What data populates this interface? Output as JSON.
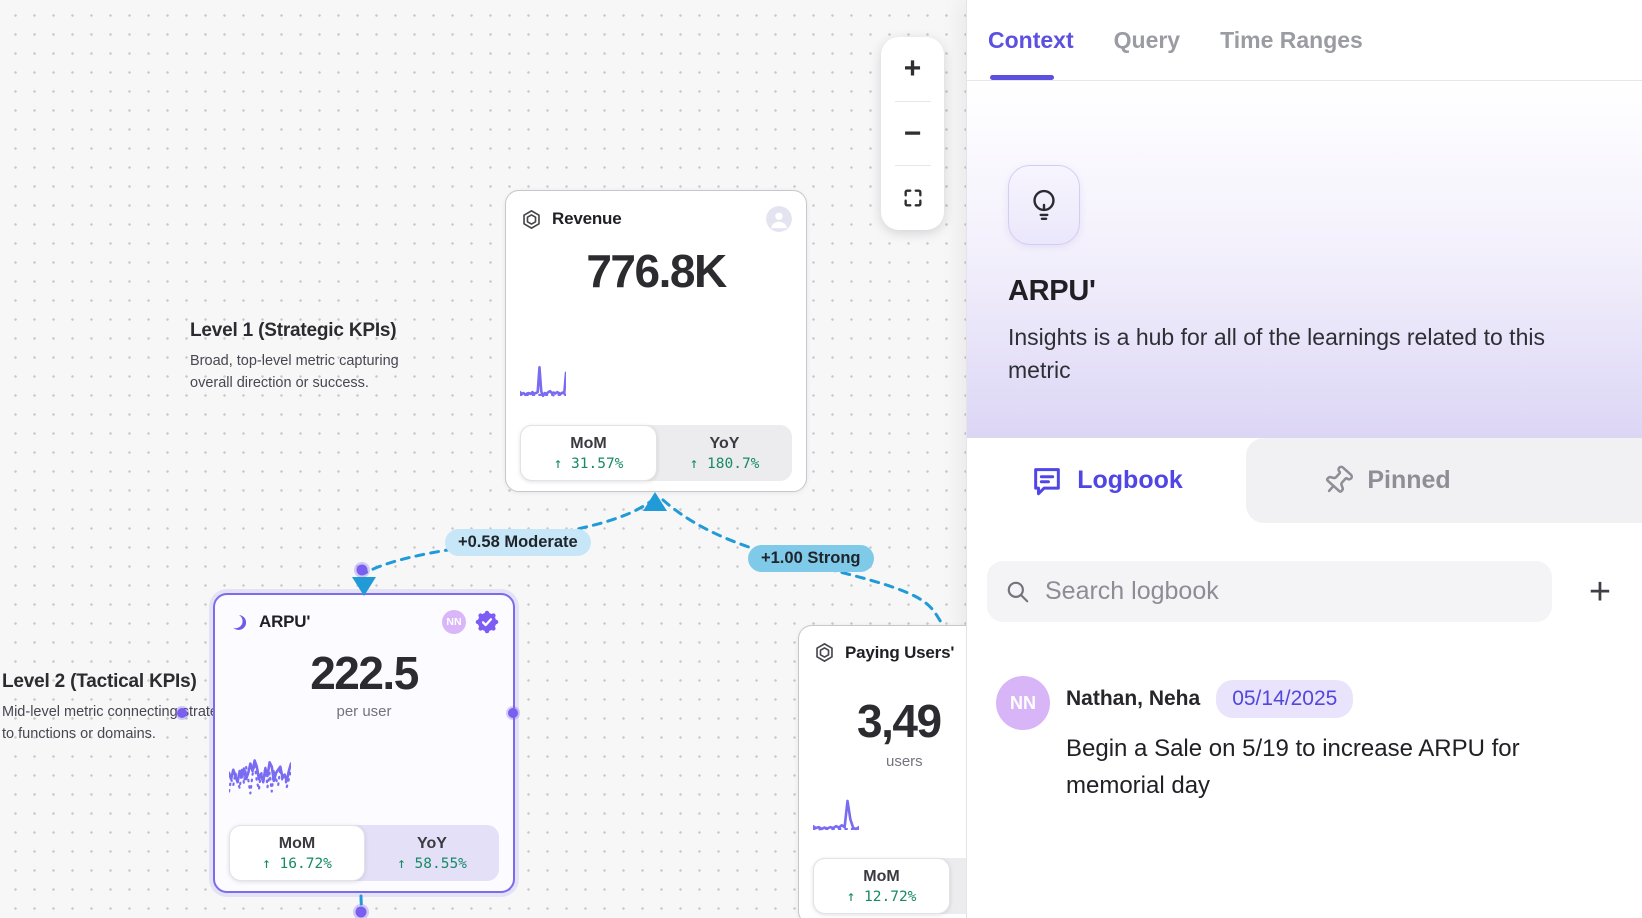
{
  "canvas": {
    "zoom_controls": {
      "zoom_in": "+",
      "zoom_out": "−"
    },
    "annotations": {
      "level1": {
        "title": "Level 1 (Strategic KPIs)",
        "description": "Broad, top-level metric capturing overall direction or success."
      },
      "level2": {
        "title": "Level 2 (Tactical KPIs)",
        "description": "Mid-level metric connecting strategy to functions or domains."
      }
    },
    "edges": [
      {
        "label": "+0.58 Moderate"
      },
      {
        "label": "+1.00 Strong"
      }
    ],
    "cards": {
      "revenue": {
        "title": "Revenue",
        "value": "776.8K",
        "footer": {
          "mom_label": "MoM",
          "mom_value": "↑ 31.57%",
          "yoy_label": "YoY",
          "yoy_value": "↑ 180.7%"
        },
        "spark": {
          "solid": [
            72,
            76,
            74,
            78,
            75,
            74,
            76,
            72,
            75,
            74,
            72,
            18,
            70,
            80,
            74,
            76,
            72,
            70,
            74,
            73,
            75,
            72,
            74,
            76,
            73,
            75,
            30
          ],
          "dotted": [
            78,
            78,
            79,
            78,
            78,
            78,
            79,
            78,
            78,
            78,
            78,
            78,
            78,
            79,
            78,
            78,
            78,
            78,
            78,
            79,
            78,
            78,
            78,
            78,
            78,
            78,
            78
          ]
        }
      },
      "arpu": {
        "title": "ARPU'",
        "value": "222.5",
        "unit": "per user",
        "avatar": "NN",
        "footer": {
          "mom_label": "MoM",
          "mom_value": "↑ 16.72%",
          "yoy_label": "YoY",
          "yoy_value": "↑ 58.55%"
        },
        "spark": {
          "solid": [
            45,
            55,
            40,
            50,
            60,
            42,
            52,
            38,
            55,
            45,
            30,
            42,
            25,
            35,
            55,
            48,
            60,
            38,
            50,
            28,
            35,
            58,
            45,
            40,
            35,
            52,
            48,
            58,
            42,
            30
          ],
          "dotted": [
            75,
            55,
            65,
            45,
            58,
            70,
            40,
            62,
            35,
            55,
            78,
            48,
            30,
            58,
            72,
            42,
            60,
            35,
            68,
            45,
            75,
            40,
            55,
            65,
            38,
            58,
            45,
            68,
            55,
            40
          ]
        }
      },
      "paying_users": {
        "title": "Paying Users'",
        "value": "3,49",
        "unit": "users",
        "footer": {
          "mom_label": "MoM",
          "mom_value": "↑ 12.72%"
        },
        "spark": {
          "solid": [
            70,
            74,
            72,
            76,
            73,
            75,
            72,
            74,
            70,
            73,
            68,
            72,
            15,
            55,
            74,
            76,
            72
          ],
          "dotted": [
            76,
            76,
            77,
            76,
            76,
            76,
            77,
            76,
            76,
            76,
            76,
            76,
            76,
            76,
            76,
            76,
            76
          ]
        }
      }
    }
  },
  "panel": {
    "tabs": [
      {
        "label": "Context"
      },
      {
        "label": "Query"
      },
      {
        "label": "Time Ranges"
      }
    ],
    "hero": {
      "title": "ARPU'",
      "description": "Insights is a hub for all of the learnings related to this metric"
    },
    "subtabs": {
      "logbook": "Logbook",
      "pinned": "Pinned"
    },
    "search": {
      "placeholder": "Search logbook"
    },
    "add_button": "+",
    "logbook_entries": [
      {
        "avatar": "NN",
        "author": "Nathan, Neha",
        "date": "05/14/2025",
        "text": "Begin a Sale on 5/19 to increase ARPU for memorial day"
      }
    ]
  }
}
